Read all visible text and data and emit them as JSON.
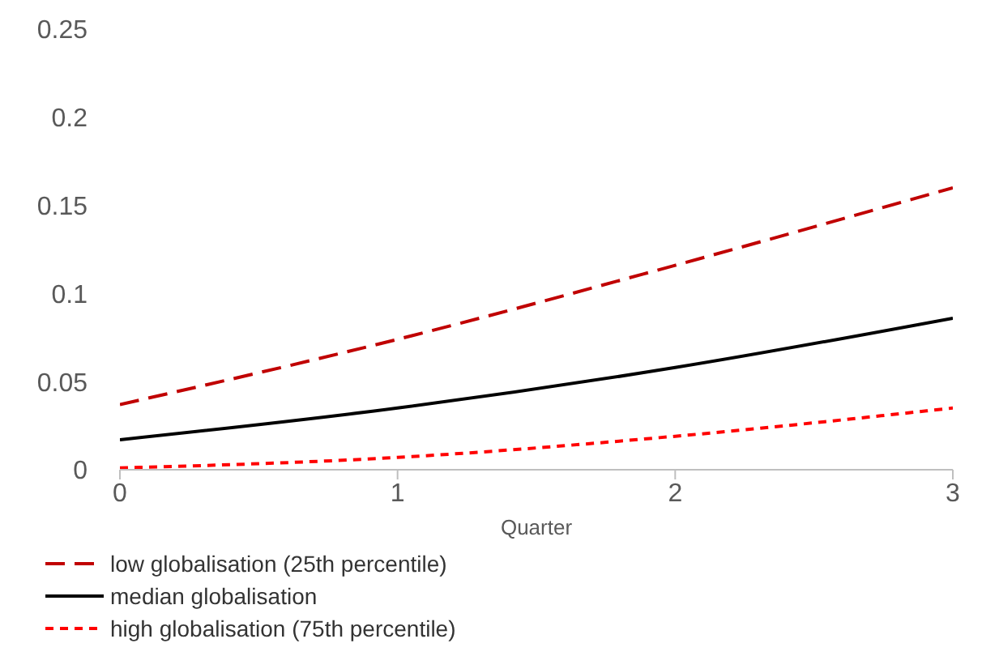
{
  "chart_data": {
    "type": "line",
    "xlabel": "Quarter",
    "x": [
      0,
      1,
      2,
      3
    ],
    "xlim": [
      0,
      3
    ],
    "xticks": [
      0,
      1,
      2,
      3
    ],
    "ylim": [
      0,
      0.25
    ],
    "yticks": [
      0,
      0.05,
      0.1,
      0.15,
      0.2,
      0.25
    ],
    "grid": false,
    "legend": "bottom left",
    "marker": "none",
    "series": [
      {
        "name": "low globalisation (25th percentile)",
        "color": "#c00000",
        "line_style": "dashed",
        "values": [
          0.037,
          0.074,
          0.116,
          0.16
        ]
      },
      {
        "name": "median globalisation",
        "color": "#000000",
        "line_style": "solid",
        "values": [
          0.017,
          0.035,
          0.058,
          0.086
        ]
      },
      {
        "name": "high globalisation (75th percentile)",
        "color": "#ff0000",
        "line_style": "dotted",
        "values": [
          0.001,
          0.007,
          0.019,
          0.035
        ]
      }
    ]
  }
}
